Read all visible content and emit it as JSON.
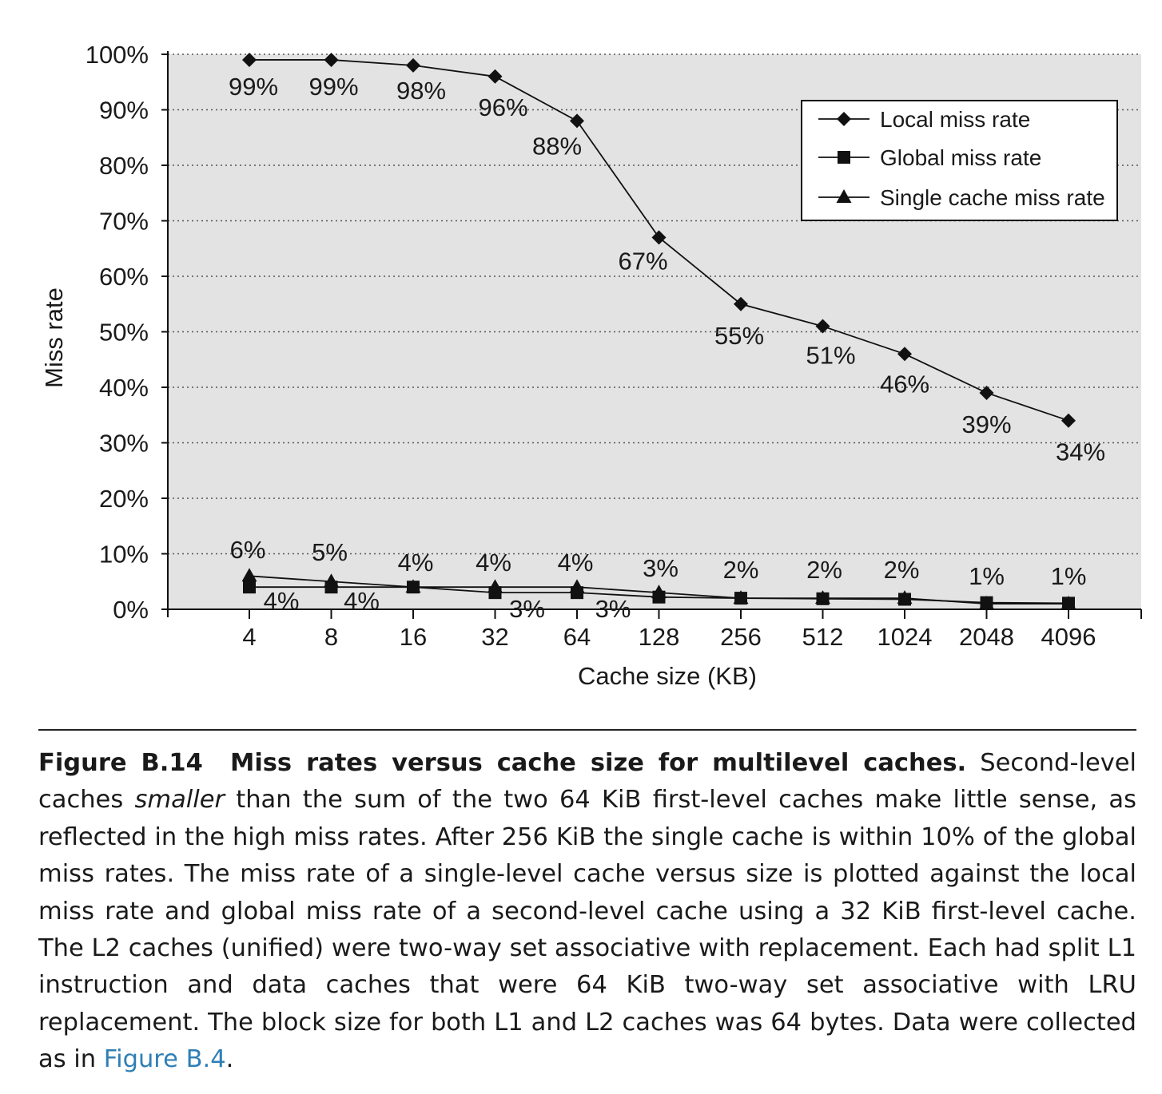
{
  "chart_data": {
    "type": "line",
    "x": [
      4,
      8,
      16,
      32,
      64,
      128,
      256,
      512,
      1024,
      2048,
      4096
    ],
    "x_tick_labels": [
      "4",
      "8",
      "16",
      "32",
      "64",
      "128",
      "256",
      "512",
      "1024",
      "2048",
      "4096"
    ],
    "x_scale": "log2",
    "xlabel": "Cache size (KB)",
    "ylabel": "Miss rate",
    "ylim": [
      0,
      100
    ],
    "y_unit": "%",
    "y_tick_labels": [
      "0%",
      "10%",
      "20%",
      "30%",
      "40%",
      "50%",
      "60%",
      "70%",
      "80%",
      "90%",
      "100%"
    ],
    "y_ticks": [
      0,
      10,
      20,
      30,
      40,
      50,
      60,
      70,
      80,
      90,
      100
    ],
    "grid": "horizontal dotted",
    "plot_background": "#e3e3e3",
    "legend_position": "top-right",
    "series": [
      {
        "name": "Local miss rate",
        "marker": "diamond",
        "values": [
          99,
          99,
          98,
          96,
          88,
          67,
          55,
          51,
          46,
          39,
          34
        ],
        "labels": [
          "99%",
          "99%",
          "98%",
          "96%",
          "88%",
          "67%",
          "55%",
          "51%",
          "46%",
          "39%",
          "34%"
        ]
      },
      {
        "name": "Global miss rate",
        "marker": "square",
        "values": [
          4,
          4,
          4,
          3,
          3,
          2.2,
          2,
          1.9,
          1.8,
          1.2,
          1.1
        ],
        "labels": [
          "4%",
          "4%",
          "",
          "3%",
          "3%",
          "",
          "",
          "",
          "",
          "",
          ""
        ]
      },
      {
        "name": "Single cache miss rate",
        "marker": "triangle",
        "values": [
          6,
          5,
          4,
          4,
          4,
          3,
          2,
          2,
          2,
          1,
          1
        ],
        "labels": [
          "6%",
          "5%",
          "4%",
          "4%",
          "4%",
          "3%",
          "2%",
          "2%",
          "2%",
          "1%",
          "1%"
        ]
      }
    ]
  },
  "caption": {
    "label": "Figure B.14",
    "title": "Miss rates versus cache size for multilevel caches.",
    "part1": " Second-level caches ",
    "emphasis": "smaller",
    "part2": " than the sum of the two 64 KiB first-level caches make little sense, as reflected in the high miss rates. After 256 KiB the single cache is within 10% of the global miss rates. The miss rate of a single-level cache versus size is plotted against the local miss rate and global miss rate of a second-level cache using a 32 KiB first-level cache. The L2 caches (unified) were two-way set associative with replacement. Each had split L1 instruction and data caches that were 64 KiB two-way set associative with LRU replacement. The block size for both L1 and L2 caches was 64 bytes. Data were collected as in ",
    "link": "Figure B.4",
    "end": "."
  },
  "colors": {
    "plot_background": "#e3e3e3",
    "line": "#111111",
    "grid": "#555555",
    "link": "#2f7fb5"
  }
}
